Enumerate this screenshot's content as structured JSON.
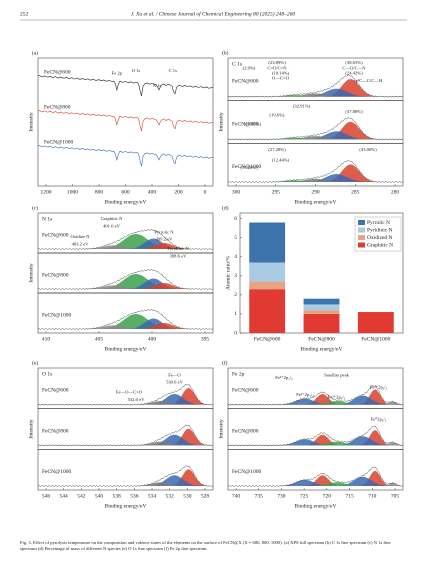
{
  "header": {
    "page": "252",
    "journal": "J. Xu et al. / Chinese Journal of Chemical Engineering 80 (2025) 248–260"
  },
  "panels": [
    {
      "letter": "(a)",
      "title": "",
      "samples": [
        "FeCN@600",
        "FeCN@800",
        "FeCN@1000"
      ],
      "annotations": [
        "Fe 2p",
        "O 1s",
        "N 1s",
        "C 1s"
      ],
      "xticks": [
        "1200",
        "1000",
        "800",
        "600",
        "400",
        "200",
        "0"
      ],
      "xlabel": "Binding energy/eV",
      "ylabel": "Intensity"
    },
    {
      "letter": "(b)",
      "title": "C 1s",
      "samples": [
        "FeCN@600",
        "FeCN@800",
        "FeCN@1000"
      ],
      "annotations": [
        "(2.9%)",
        "(23.89%)",
        "C=O/C=N",
        "(10.14%)",
        "O—C=O",
        "(38.65%)",
        "C—O/C—N",
        "(24.42%)",
        "sp²C—C/C—H",
        "(32.91%)",
        "(19.6%)",
        "(10.01%)",
        "(37.88%)",
        "(27.28%)",
        "(12.44%)",
        "(17.28%)",
        "(43.00%)"
      ],
      "xticks": [
        "300",
        "295",
        "290",
        "285",
        "280"
      ],
      "xlabel": "Binding energy/eV",
      "ylabel": "Intensity"
    },
    {
      "letter": "(c)",
      "title": "N 1s",
      "samples": [
        "FeCN@600",
        "FeCN@800",
        "FeCN@1000"
      ],
      "annotations": [
        "Graphitic N",
        "401.0 eV",
        "Pyrrolic N",
        "399.2 eV",
        "Oxidize N",
        "403.2 eV",
        "Pyridinic N",
        "398.6 eV"
      ],
      "xticks": [
        "410",
        "405",
        "400",
        "395"
      ],
      "xlabel": "Binding energy/eV",
      "ylabel": "Intensity"
    },
    {
      "letter": "(e)",
      "title": "O 1s",
      "samples": [
        "FeCN@600",
        "FeCN@800",
        "FeCN@1000"
      ],
      "annotations": [
        "Fe—O",
        "530.6 eV",
        "Fe—O—C=O",
        "532.0 eV"
      ],
      "xticks": [
        "546",
        "544",
        "542",
        "540",
        "538",
        "536",
        "534",
        "532",
        "530",
        "528"
      ],
      "xlabel": "Binding energy/eV",
      "ylabel": "Intensity"
    },
    {
      "letter": "(f)",
      "title": "Fe 2p",
      "samples": [
        "FeCN@600",
        "FeCN@800",
        "FeCN@1000"
      ],
      "annotations": [
        "Fe³⁺2p₁/₂",
        "Satellite peak",
        "Fe²⁺2p₃/₂",
        "Fe²⁺2p₁/₂",
        "Fe³⁺2p₃/₂",
        "Fe⁰2p₃/₂"
      ],
      "xticks": [
        "740",
        "735",
        "730",
        "725",
        "720",
        "715",
        "710",
        "705"
      ],
      "xlabel": "Binding energy/eV",
      "ylabel": "Intensity"
    }
  ],
  "chart_data": {
    "type": "stacked-bar",
    "letter": "(d)",
    "categories": [
      "FeCN@600",
      "FeCN@800",
      "FeCN@1000"
    ],
    "series": [
      {
        "name": "Graphitic N",
        "color": "#e03a32",
        "values": [
          2.3,
          1.0,
          1.1
        ]
      },
      {
        "name": "Oxidized N",
        "color": "#e6a487",
        "values": [
          0.4,
          0.2,
          0
        ]
      },
      {
        "name": "Pyridinic N",
        "color": "#a9cbe3",
        "values": [
          1.0,
          0.3,
          0
        ]
      },
      {
        "name": "Pyrrolic N",
        "color": "#3d73ab",
        "values": [
          2.1,
          0.3,
          0
        ]
      }
    ],
    "ylim": [
      0,
      6.3
    ],
    "yticks": [
      0,
      1,
      2,
      3,
      4,
      5,
      6
    ],
    "xlabel": "Binding energy/eV",
    "ylabel": "Atomic ratio/%",
    "legend": "upper-right"
  },
  "caption": "Fig. 3. Effect of pyrolysis temperature on the composition and valence states of the elements on the surface of FeCN@X (X = 600, 800, 1000). (a) XPS full spectrum (b) C 1s fine spectrum (c) N 1s fine spectrum (d) Percentage of mass of different N species (e) O 1s fine spectrum (f) Fe 2p fine spectrum."
}
